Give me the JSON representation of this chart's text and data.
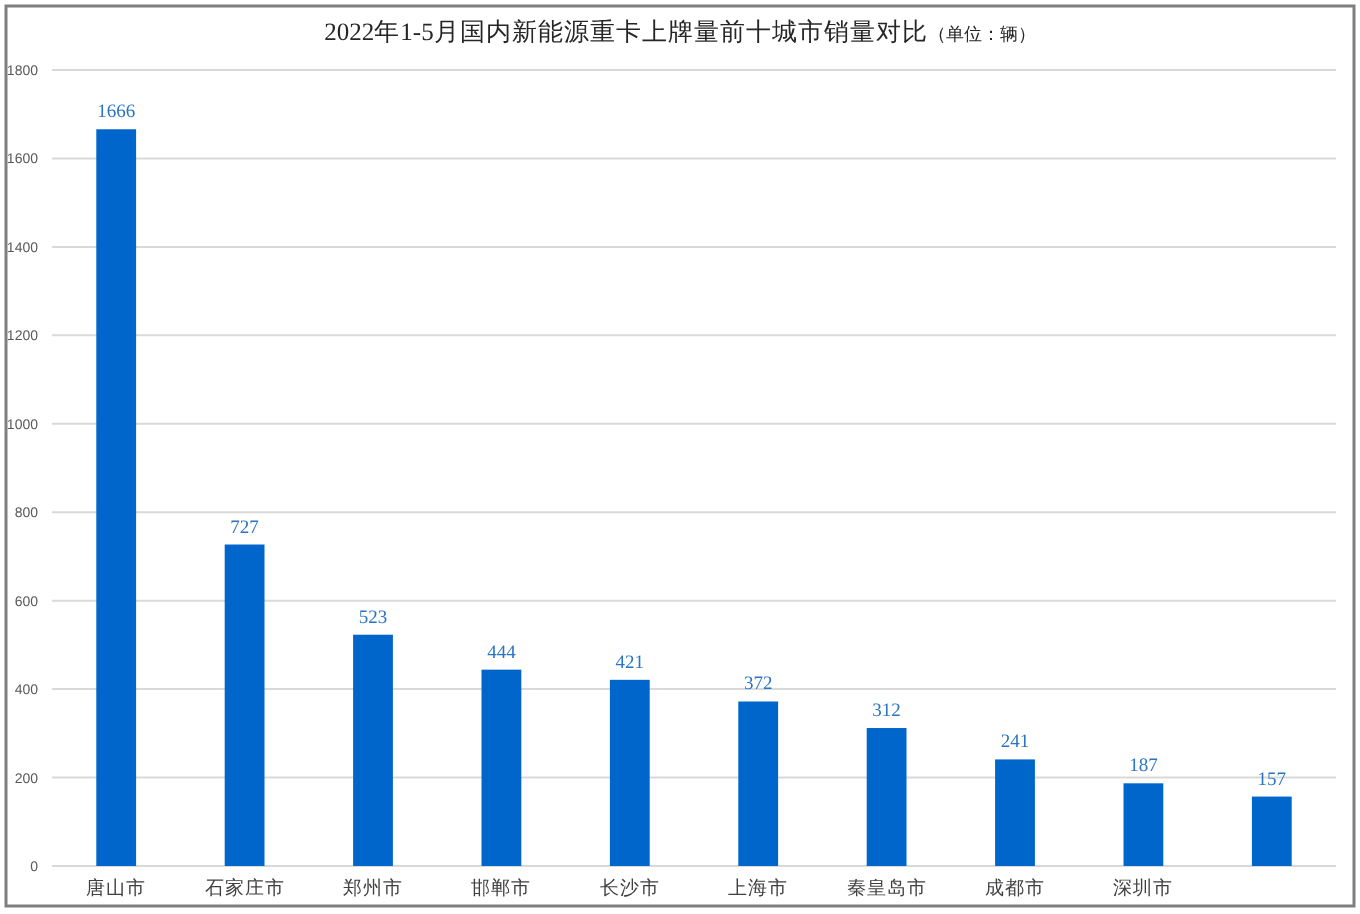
{
  "chart_data": {
    "type": "bar",
    "title": "2022年1-5月国内新能源重卡上牌量前十城市销量对比",
    "subtitle": "（单位：辆）",
    "categories": [
      "唐山市",
      "石家庄市",
      "郑州市",
      "邯郸市",
      "长沙市",
      "上海市",
      "秦皇岛市",
      "成都市",
      "深圳市",
      null
    ],
    "values": [
      1666,
      727,
      523,
      444,
      421,
      372,
      312,
      241,
      187,
      157
    ],
    "color": "#0066cc",
    "ylim": [
      0,
      1800
    ],
    "yticks": [
      0,
      200,
      400,
      600,
      800,
      1000,
      1200,
      1400,
      1600,
      1800
    ],
    "grid": "y",
    "data_labels": true
  }
}
